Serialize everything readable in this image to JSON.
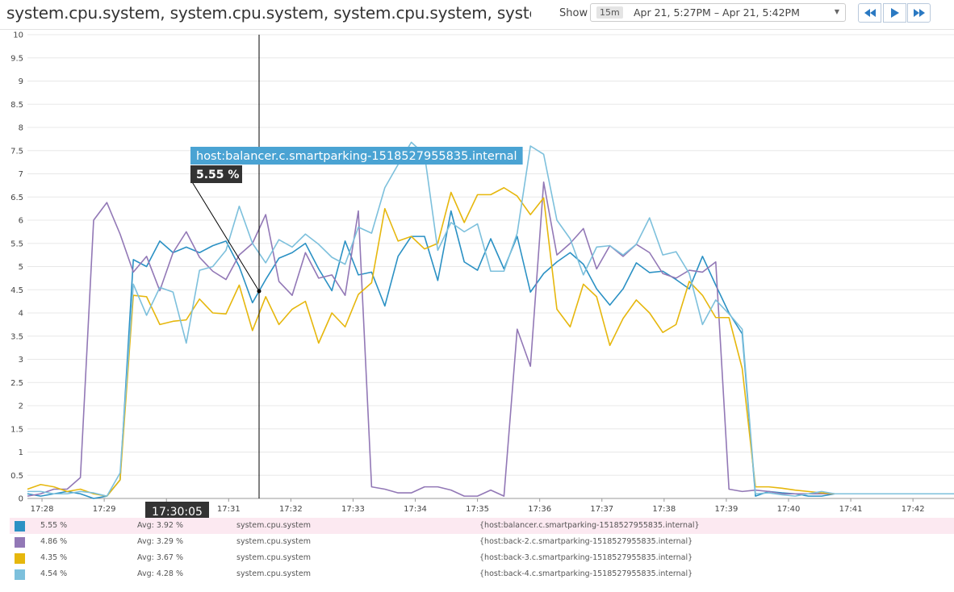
{
  "header": {
    "title": "system.cpu.system, system.cpu.system, system.cpu.system, system....",
    "show_label": "Show",
    "span": "15m",
    "range": "Apr 21, 5:27PM – Apr 21, 5:42PM"
  },
  "nav_icons": [
    "rewind-icon",
    "play-icon",
    "fast-forward-icon"
  ],
  "tooltip": {
    "host": "host:balancer.c.smartparking-1518527955835.internal",
    "value": "5.55 %",
    "time": "17:30:05"
  },
  "chart_data": {
    "type": "line",
    "x_ticks": [
      "17:28",
      "17:29",
      "17:30",
      "17:31",
      "17:32",
      "17:33",
      "17:34",
      "17:35",
      "17:36",
      "17:37",
      "17:38",
      "17:39",
      "17:40",
      "17:41",
      "17:42"
    ],
    "y_ticks": [
      "0",
      "0.5",
      "1",
      "1.5",
      "2",
      "2.5",
      "3",
      "3.5",
      "4",
      "4.5",
      "5",
      "5.5",
      "6",
      "6.5",
      "7",
      "7.5",
      "8",
      "8.5",
      "9",
      "9.5",
      "10"
    ],
    "ylim": [
      0,
      10
    ],
    "grid": true,
    "cursor_x": 17.5,
    "series": [
      {
        "name": "{host:balancer.c.smartparking-1518527955835.internal}",
        "color": "#2b91c4",
        "x": [
          0,
          1,
          2,
          3,
          4,
          5,
          6,
          7,
          8,
          9,
          10,
          11,
          12,
          13,
          14,
          15,
          16,
          17,
          18,
          19,
          20,
          21,
          22,
          23,
          24,
          25,
          26,
          27,
          28,
          29,
          30,
          31,
          32,
          33,
          34,
          35,
          36,
          37,
          38,
          39,
          40,
          41,
          42,
          43,
          44,
          45,
          46,
          47,
          48,
          49,
          50,
          51,
          52,
          53,
          54,
          55,
          56,
          57,
          58,
          59,
          60,
          61,
          62,
          63,
          64,
          65,
          66,
          67,
          68,
          69,
          70
        ],
        "y": [
          0.1,
          0.05,
          0.1,
          0.15,
          0.1,
          0.0,
          0.05,
          0.4,
          5.15,
          5.0,
          5.55,
          5.3,
          5.42,
          5.3,
          5.45,
          5.55,
          5.0,
          4.22,
          4.72,
          5.18,
          5.3,
          5.5,
          4.95,
          4.48,
          5.55,
          4.82,
          4.88,
          4.15,
          5.22,
          5.65,
          5.65,
          4.7,
          6.2,
          5.1,
          4.92,
          5.6,
          4.95,
          5.65,
          4.45,
          4.85,
          5.1,
          5.3,
          5.05,
          4.52,
          4.17,
          4.52,
          5.08,
          4.87,
          4.9,
          4.72,
          4.52,
          5.22,
          4.6,
          4.0,
          3.55,
          0.05,
          0.15,
          0.12,
          0.1,
          0.05,
          0.05,
          0.1,
          0.1,
          0.1,
          0.1,
          0.1,
          0.1,
          0.1,
          0.1,
          0.1,
          0.1
        ]
      },
      {
        "name": "{host:back-2.c.smartparking-1518527955835.internal}",
        "color": "#9278b6",
        "x": [
          0,
          1,
          2,
          3,
          4,
          5,
          6,
          7,
          8,
          9,
          10,
          11,
          12,
          13,
          14,
          15,
          16,
          17,
          18,
          19,
          20,
          21,
          22,
          23,
          24,
          25,
          26,
          27,
          28,
          29,
          30,
          31,
          32,
          33,
          34,
          35,
          36,
          37,
          38,
          39,
          40,
          41,
          42,
          43,
          44,
          45,
          46,
          47,
          48,
          49,
          50,
          51,
          52,
          53,
          54,
          55,
          56,
          57,
          58,
          59,
          60,
          61,
          62,
          63,
          64,
          65,
          66,
          67,
          68,
          69,
          70
        ],
        "y": [
          0.05,
          0.1,
          0.2,
          0.2,
          0.45,
          6.0,
          6.38,
          5.7,
          4.88,
          5.22,
          4.48,
          5.3,
          5.75,
          5.2,
          4.9,
          4.72,
          5.25,
          5.5,
          6.12,
          4.68,
          4.38,
          5.3,
          4.75,
          4.82,
          4.38,
          6.2,
          0.25,
          0.2,
          0.12,
          0.12,
          0.25,
          0.25,
          0.18,
          0.05,
          0.05,
          0.18,
          0.05,
          3.65,
          2.85,
          6.82,
          5.25,
          5.5,
          5.82,
          4.95,
          5.45,
          5.22,
          5.48,
          5.3,
          4.85,
          4.75,
          4.92,
          4.88,
          5.1,
          0.2,
          0.15,
          0.18,
          0.15,
          0.1,
          0.1,
          0.1,
          0.1,
          0.1,
          0.1,
          0.1,
          0.1,
          0.1,
          0.1,
          0.1,
          0.1,
          0.1,
          0.1
        ]
      },
      {
        "name": "{host:back-3.c.smartparking-1518527955835.internal}",
        "color": "#e6b70d",
        "x": [
          0,
          1,
          2,
          3,
          4,
          5,
          6,
          7,
          8,
          9,
          10,
          11,
          12,
          13,
          14,
          15,
          16,
          17,
          18,
          19,
          20,
          21,
          22,
          23,
          24,
          25,
          26,
          27,
          28,
          29,
          30,
          31,
          32,
          33,
          34,
          35,
          36,
          37,
          38,
          39,
          40,
          41,
          42,
          43,
          44,
          45,
          46,
          47,
          48,
          49,
          50,
          51,
          52,
          53,
          54,
          55,
          56,
          57,
          58,
          59,
          60,
          61,
          62,
          63,
          64,
          65,
          66,
          67,
          68,
          69,
          70
        ],
        "y": [
          0.2,
          0.3,
          0.25,
          0.15,
          0.2,
          0.1,
          0.05,
          0.4,
          4.38,
          4.35,
          3.75,
          3.82,
          3.85,
          4.3,
          4.0,
          3.98,
          4.6,
          3.62,
          4.35,
          3.75,
          4.08,
          4.25,
          3.35,
          4.0,
          3.7,
          4.4,
          4.65,
          6.25,
          5.55,
          5.65,
          5.38,
          5.5,
          6.6,
          5.95,
          6.55,
          6.55,
          6.7,
          6.52,
          6.12,
          6.48,
          4.08,
          3.7,
          4.62,
          4.35,
          3.3,
          3.88,
          4.28,
          4.0,
          3.58,
          3.75,
          4.68,
          4.38,
          3.9,
          3.9,
          2.8,
          0.25,
          0.25,
          0.22,
          0.18,
          0.15,
          0.12,
          0.1,
          0.1,
          0.1,
          0.1,
          0.1,
          0.1,
          0.1,
          0.1,
          0.1,
          0.1
        ]
      },
      {
        "name": "{host:back-4.c.smartparking-1518527955835.internal}",
        "color": "#7dc0dc",
        "x": [
          0,
          1,
          2,
          3,
          4,
          5,
          6,
          7,
          8,
          9,
          10,
          11,
          12,
          13,
          14,
          15,
          16,
          17,
          18,
          19,
          20,
          21,
          22,
          23,
          24,
          25,
          26,
          27,
          28,
          29,
          30,
          31,
          32,
          33,
          34,
          35,
          36,
          37,
          38,
          39,
          40,
          41,
          42,
          43,
          44,
          45,
          46,
          47,
          48,
          49,
          50,
          51,
          52,
          53,
          54,
          55,
          56,
          57,
          58,
          59,
          60,
          61,
          62,
          63,
          64,
          65,
          66,
          67,
          68,
          69,
          70
        ],
        "y": [
          0.15,
          0.15,
          0.1,
          0.1,
          0.15,
          0.12,
          0.05,
          0.55,
          4.62,
          3.95,
          4.55,
          4.45,
          3.35,
          4.92,
          5.0,
          5.35,
          6.3,
          5.5,
          5.08,
          5.58,
          5.42,
          5.7,
          5.48,
          5.2,
          5.05,
          5.85,
          5.72,
          6.7,
          7.2,
          7.68,
          7.42,
          5.35,
          5.95,
          5.75,
          5.92,
          4.9,
          4.9,
          5.72,
          7.6,
          7.42,
          6.0,
          5.6,
          4.82,
          5.42,
          5.45,
          5.25,
          5.48,
          6.05,
          5.25,
          5.32,
          4.85,
          3.75,
          4.28,
          3.98,
          3.65,
          0.1,
          0.12,
          0.08,
          0.05,
          0.1,
          0.15,
          0.1,
          0.1,
          0.1,
          0.1,
          0.1,
          0.1,
          0.1,
          0.1,
          0.1,
          0.1
        ]
      }
    ]
  },
  "legend": [
    {
      "value": "5.55 %",
      "avg": "Avg: 3.92 %",
      "metric": "system.cpu.system",
      "scope": "{host:balancer.c.smartparking-1518527955835.internal}",
      "color": "#2b91c4"
    },
    {
      "value": "4.86 %",
      "avg": "Avg: 3.29 %",
      "metric": "system.cpu.system",
      "scope": "{host:back-2.c.smartparking-1518527955835.internal}",
      "color": "#9278b6"
    },
    {
      "value": "4.35 %",
      "avg": "Avg: 3.67 %",
      "metric": "system.cpu.system",
      "scope": "{host:back-3.c.smartparking-1518527955835.internal}",
      "color": "#e6b70d"
    },
    {
      "value": "4.54 %",
      "avg": "Avg: 4.28 %",
      "metric": "system.cpu.system",
      "scope": "{host:back-4.c.smartparking-1518527955835.internal}",
      "color": "#7dc0dc"
    }
  ]
}
